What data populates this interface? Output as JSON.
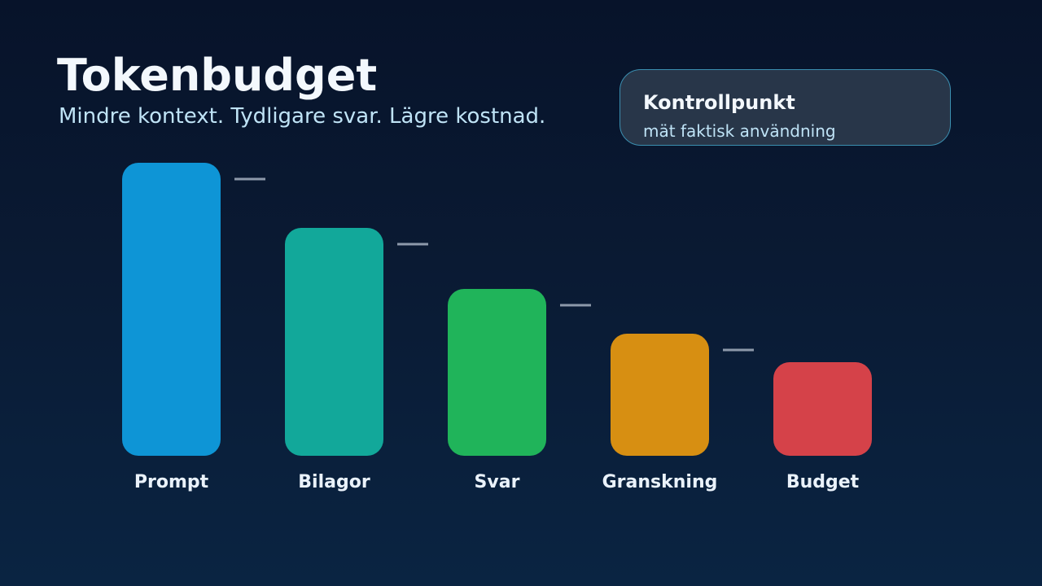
{
  "header": {
    "title": "Tokenbudget",
    "subtitle": "Mindre kontext. Tydligare svar. Lägre kostnad."
  },
  "callout": {
    "title": "Kontrollpunkt",
    "text": "mät faktisk användning"
  },
  "chart_data": {
    "type": "bar",
    "categories": [
      "Prompt",
      "Bilagor",
      "Svar",
      "Granskning",
      "Budget"
    ],
    "values": [
      360,
      280,
      205,
      150,
      115
    ],
    "colors": [
      "#0e95d6",
      "#12a89a",
      "#20b45a",
      "#d78f12",
      "#d54249"
    ],
    "connector_color": "#8d99aa",
    "label_color": "#eaf2fb",
    "title": "",
    "xlabel": "",
    "ylabel": "",
    "grid": false
  }
}
